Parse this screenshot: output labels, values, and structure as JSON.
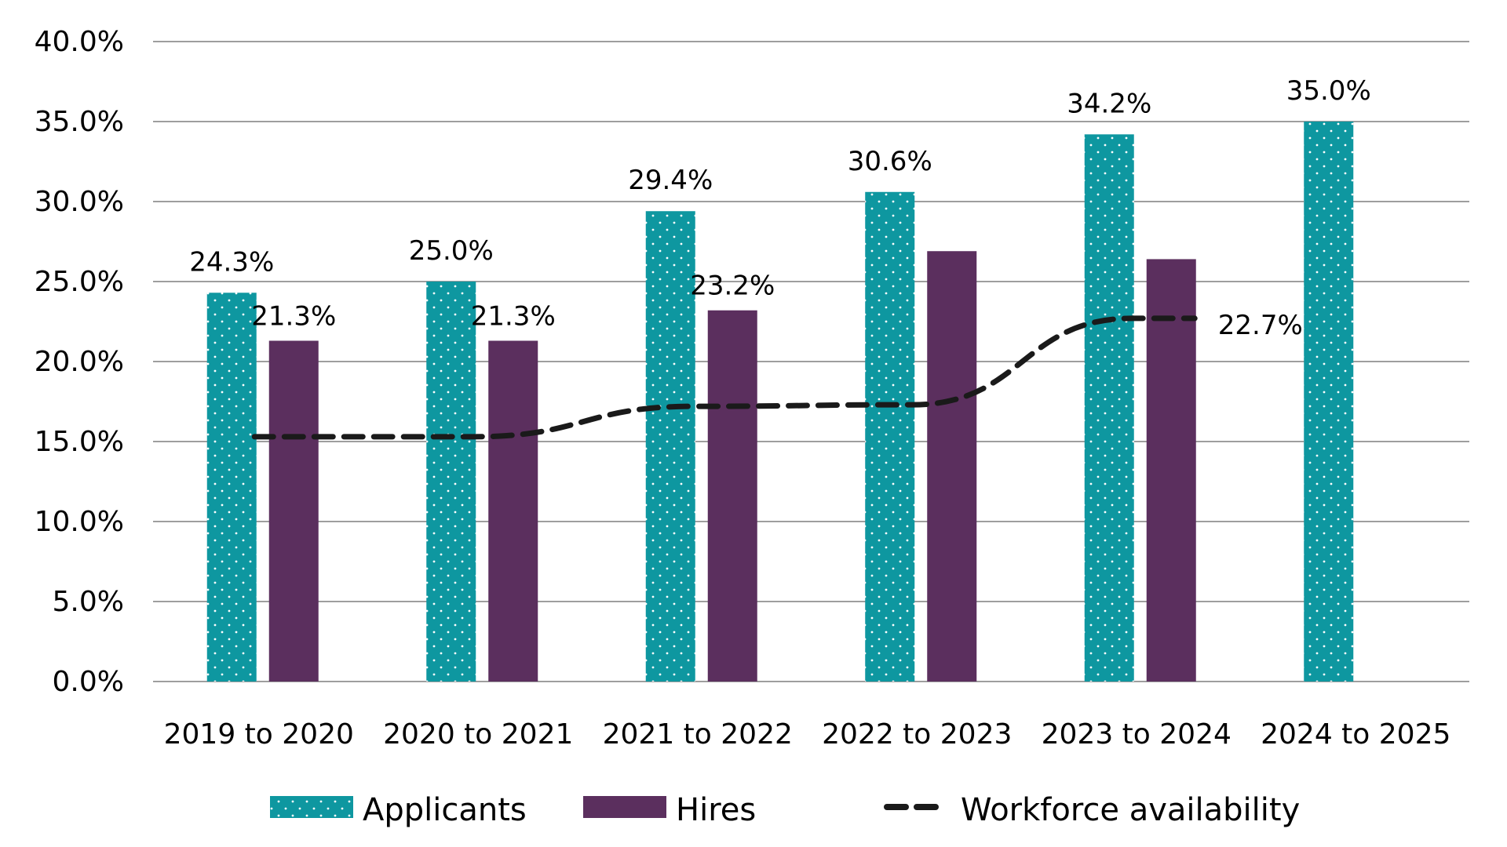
{
  "chart_data": {
    "type": "bar",
    "categories": [
      "2019 to 2020",
      "2020 to 2021",
      "2021 to 2022",
      "2022 to 2023",
      "2023 to 2024",
      "2024 to 2025"
    ],
    "series": [
      {
        "name": "Applicants",
        "kind": "bar",
        "color": "#0e97a0",
        "pattern": "dots",
        "values": [
          24.3,
          25.0,
          29.4,
          30.6,
          34.2,
          35.0
        ],
        "labels": [
          "24.3%",
          "25.0%",
          "29.4%",
          "30.6%",
          "34.2%",
          "35.0%"
        ]
      },
      {
        "name": "Hires",
        "kind": "bar",
        "color": "#5b2f5e",
        "values": [
          21.3,
          21.3,
          23.2,
          26.9,
          26.4,
          null
        ],
        "labels": [
          "21.3%",
          "21.3%",
          "23.2%",
          null,
          null,
          null
        ]
      },
      {
        "name": "Workforce availability",
        "kind": "line",
        "style": "dashed",
        "color": "#1a1a1a",
        "values": [
          15.3,
          15.3,
          17.2,
          17.3,
          22.7,
          null
        ],
        "labels": [
          null,
          null,
          null,
          null,
          "22.7%",
          null
        ]
      }
    ],
    "ylim": [
      0,
      40
    ],
    "yticks": [
      "0.0%",
      "5.0%",
      "10.0%",
      "15.0%",
      "20.0%",
      "25.0%",
      "30.0%",
      "35.0%",
      "40.0%"
    ],
    "grid": true,
    "legend_position": "bottom",
    "title": "",
    "xlabel": "",
    "ylabel": ""
  }
}
